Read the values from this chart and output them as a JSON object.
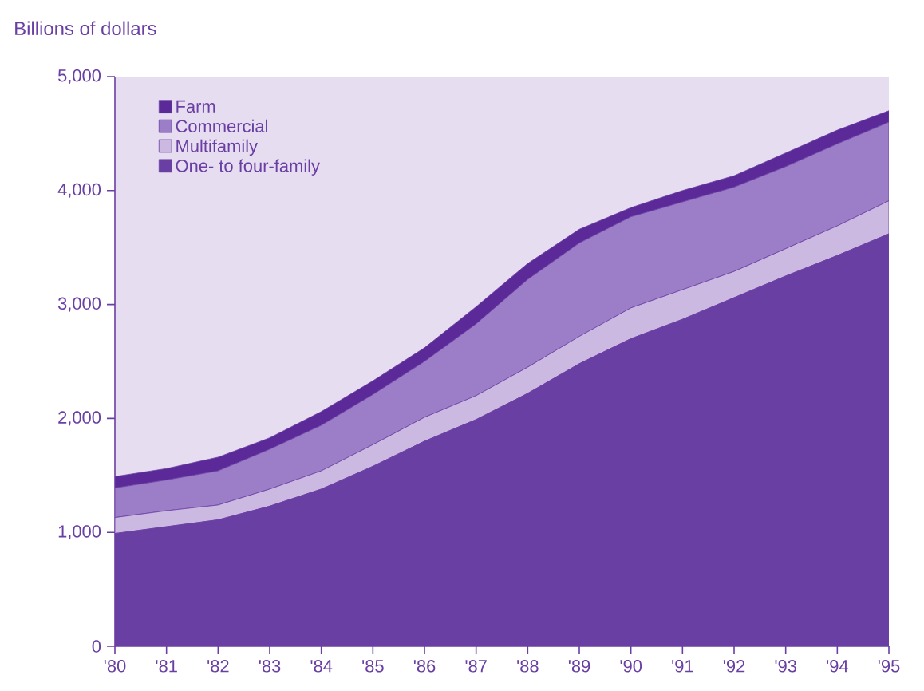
{
  "chart_data": {
    "type": "area",
    "stacked": true,
    "ylabel": "Billions of dollars",
    "categories": [
      "'80",
      "'81",
      "'82",
      "'83",
      "'84",
      "'85",
      "'86",
      "'87",
      "'88",
      "'89",
      "'90",
      "'91",
      "'92",
      "'93",
      "'94",
      "'95"
    ],
    "ylim": [
      0,
      5000
    ],
    "yticks": [
      0,
      {
        "value": 1000,
        "label": "1,000"
      },
      {
        "value": 2000,
        "label": "2,000"
      },
      {
        "value": 3000,
        "label": "3,000"
      },
      {
        "value": 4000,
        "label": "4,000"
      },
      {
        "value": 5000,
        "label": "5,000"
      }
    ],
    "legend": "top left",
    "grid": false,
    "series": [
      {
        "name": "One- to four-family",
        "color": "#6a3fa3",
        "values": [
          990,
          1050,
          1110,
          1230,
          1380,
          1580,
          1800,
          1990,
          2220,
          2480,
          2700,
          2870,
          3060,
          3250,
          3430,
          3620
        ]
      },
      {
        "name": "Multifamily",
        "color": "#cbb9e2",
        "values": [
          140,
          140,
          130,
          150,
          160,
          190,
          210,
          210,
          230,
          240,
          270,
          260,
          230,
          240,
          260,
          290
        ]
      },
      {
        "name": "Commercial",
        "color": "#9b7dc8",
        "values": [
          260,
          270,
          300,
          350,
          400,
          440,
          490,
          630,
          770,
          820,
          800,
          770,
          740,
          720,
          720,
          690
        ]
      },
      {
        "name": "Farm",
        "color": "#5b2a98",
        "values": [
          100,
          100,
          120,
          100,
          120,
          120,
          120,
          150,
          140,
          120,
          80,
          100,
          100,
          120,
          120,
          100
        ]
      }
    ]
  }
}
